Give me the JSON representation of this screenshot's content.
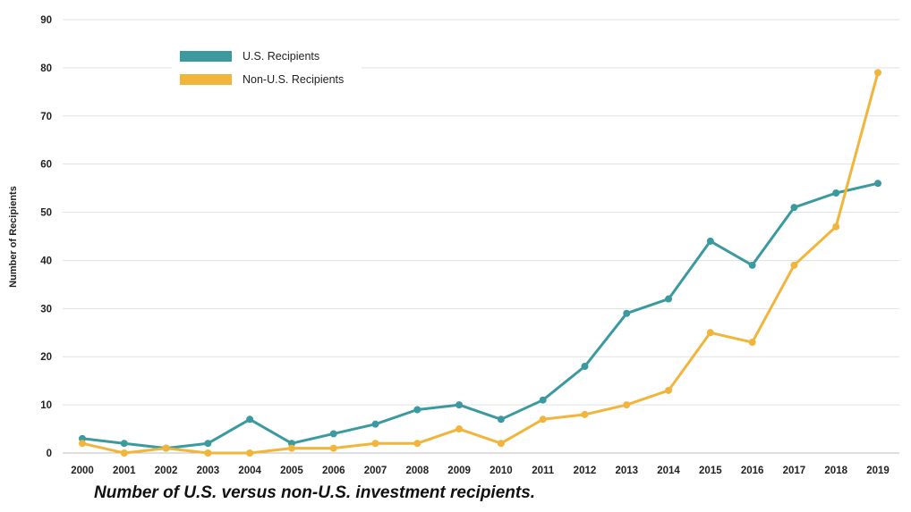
{
  "caption": "Number of U.S. versus non-U.S. investment recipients.",
  "chart_data": {
    "type": "line",
    "title": "",
    "xlabel": "",
    "ylabel": "Number of Recipients",
    "x": [
      "2000",
      "2001",
      "2002",
      "2003",
      "2004",
      "2005",
      "2006",
      "2007",
      "2008",
      "2009",
      "2010",
      "2011",
      "2012",
      "2013",
      "2014",
      "2015",
      "2016",
      "2017",
      "2018",
      "2019"
    ],
    "ylim": [
      0,
      90
    ],
    "yticks": [
      0,
      10,
      20,
      30,
      40,
      50,
      60,
      70,
      80,
      90
    ],
    "grid": "horizontal",
    "legend_position": "top-left",
    "series": [
      {
        "name": "U.S. Recipients",
        "color": "#3a9a9f",
        "values": [
          3,
          2,
          1,
          2,
          7,
          2,
          4,
          6,
          9,
          10,
          7,
          11,
          18,
          29,
          32,
          44,
          39,
          51,
          54,
          56
        ]
      },
      {
        "name": "Non-U.S. Recipients",
        "color": "#f1b53c",
        "values": [
          2,
          0,
          1,
          0,
          0,
          1,
          1,
          2,
          2,
          5,
          2,
          7,
          8,
          10,
          13,
          25,
          23,
          39,
          47,
          79
        ]
      }
    ]
  }
}
